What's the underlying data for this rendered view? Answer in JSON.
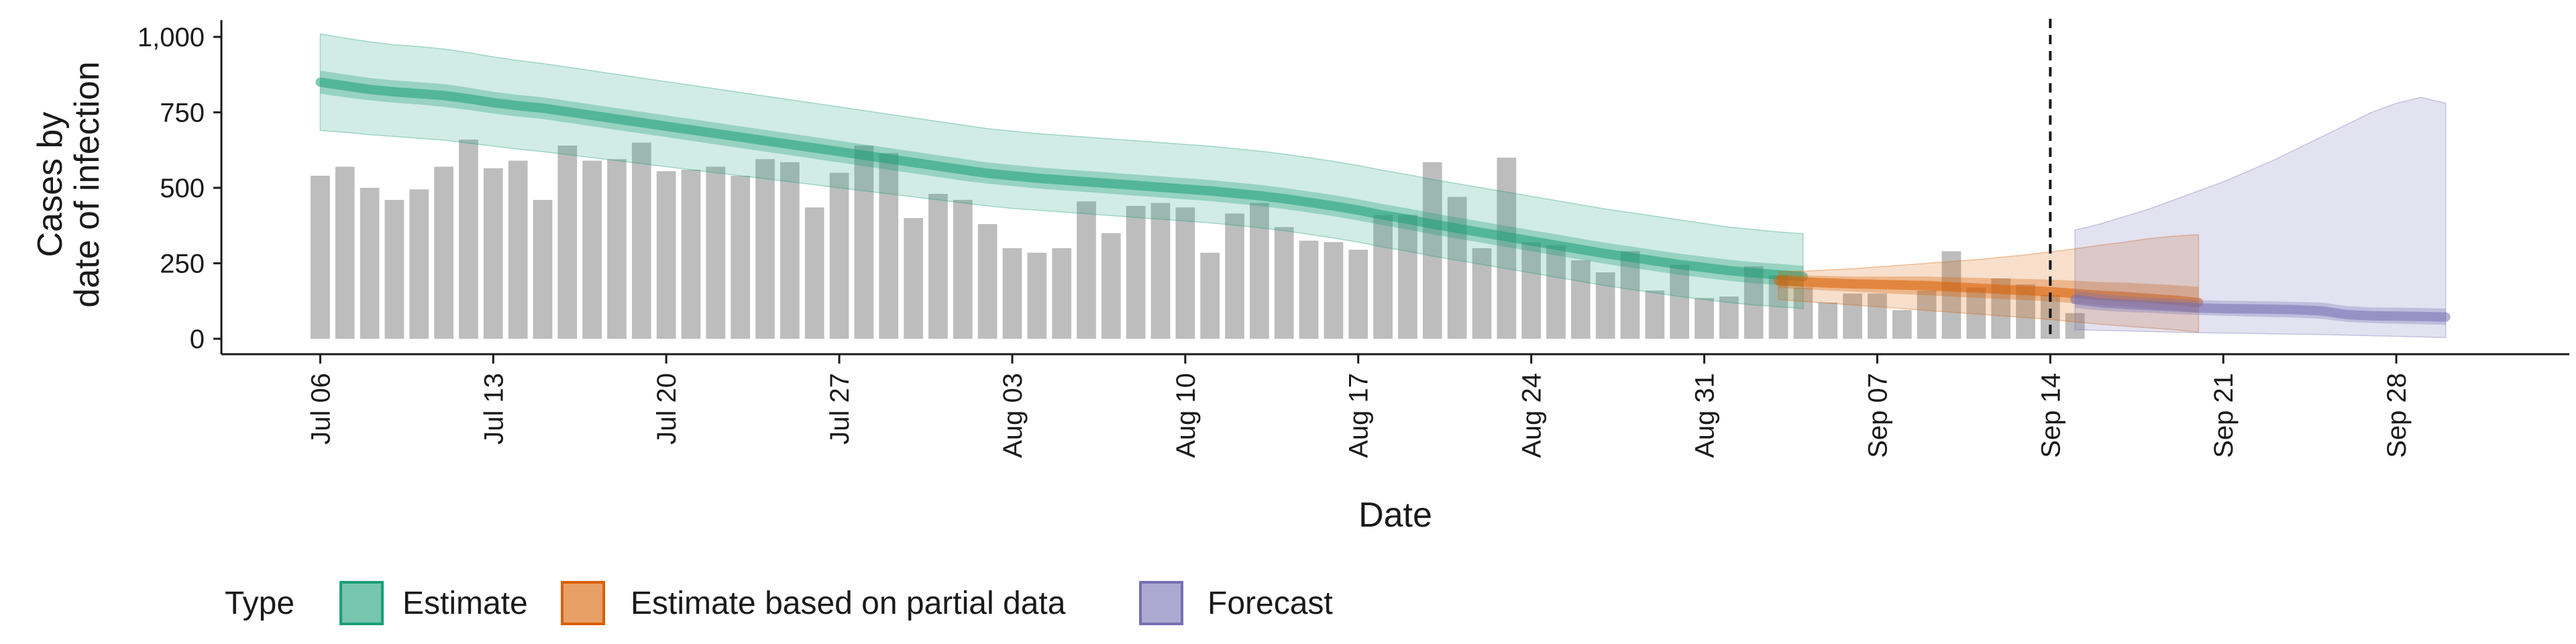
{
  "chart_data": {
    "type": "bar",
    "title": "",
    "xlabel": "Date",
    "ylabel_lines": [
      "Cases by",
      "date of infection"
    ],
    "ylim": [
      0,
      1050
    ],
    "y_ticks": [
      {
        "value": 0,
        "label": "0"
      },
      {
        "value": 250,
        "label": "250"
      },
      {
        "value": 500,
        "label": "500"
      },
      {
        "value": 750,
        "label": "750"
      },
      {
        "value": 1000,
        "label": "1,000"
      }
    ],
    "x_range": [
      "2020-07-02",
      "2020-10-05"
    ],
    "x_ticks": [
      {
        "date": "2020-07-06",
        "label": "Jul 06"
      },
      {
        "date": "2020-07-13",
        "label": "Jul 13"
      },
      {
        "date": "2020-07-20",
        "label": "Jul 20"
      },
      {
        "date": "2020-07-27",
        "label": "Jul 27"
      },
      {
        "date": "2020-08-03",
        "label": "Aug 03"
      },
      {
        "date": "2020-08-10",
        "label": "Aug 10"
      },
      {
        "date": "2020-08-17",
        "label": "Aug 17"
      },
      {
        "date": "2020-08-24",
        "label": "Aug 24"
      },
      {
        "date": "2020-08-31",
        "label": "Aug 31"
      },
      {
        "date": "2020-09-07",
        "label": "Sep 07"
      },
      {
        "date": "2020-09-14",
        "label": "Sep 14"
      },
      {
        "date": "2020-09-21",
        "label": "Sep 21"
      },
      {
        "date": "2020-09-28",
        "label": "Sep 28"
      }
    ],
    "reference_line_date": "2020-09-14",
    "reported_cases": {
      "start_date": "2020-07-06",
      "color": "#bdbdbd",
      "values": [
        540,
        570,
        500,
        460,
        495,
        570,
        660,
        565,
        590,
        460,
        640,
        590,
        595,
        650,
        555,
        560,
        570,
        540,
        595,
        585,
        435,
        550,
        640,
        615,
        400,
        480,
        460,
        380,
        300,
        285,
        300,
        455,
        350,
        440,
        450,
        435,
        285,
        415,
        450,
        370,
        325,
        320,
        295,
        410,
        410,
        585,
        470,
        300,
        600,
        320,
        310,
        260,
        220,
        290,
        160,
        245,
        135,
        140,
        240,
        210,
        170,
        120,
        150,
        150,
        95,
        160,
        290,
        170,
        200,
        180,
        145,
        85
      ]
    },
    "series": [
      {
        "name": "Estimate",
        "color": "#1b9e77",
        "start_date": "2020-07-06",
        "median": [
          850,
          838,
          826,
          818,
          812,
          806,
          795,
          782,
          772,
          764,
          752,
          740,
          728,
          716,
          704,
          692,
          680,
          668,
          656,
          644,
          632,
          620,
          608,
          596,
          584,
          572,
          560,
          548,
          540,
          532,
          526,
          520,
          514,
          508,
          502,
          496,
          490,
          482,
          474,
          464,
          452,
          440,
          426,
          410,
          396,
          380,
          366,
          352,
          338,
          324,
          310,
          296,
          282,
          270,
          258,
          246,
          236,
          226,
          218,
          212,
          206
        ],
        "inner": {
          "lower": [
            812,
            800,
            790,
            782,
            776,
            768,
            758,
            746,
            736,
            728,
            716,
            704,
            692,
            680,
            668,
            656,
            644,
            632,
            620,
            608,
            596,
            584,
            572,
            560,
            548,
            536,
            524,
            514,
            506,
            498,
            492,
            486,
            480,
            474,
            468,
            462,
            456,
            448,
            440,
            430,
            418,
            406,
            392,
            376,
            362,
            346,
            332,
            318,
            304,
            290,
            276,
            262,
            248,
            236,
            224,
            212,
            202,
            192,
            184,
            178,
            172
          ],
          "upper": [
            888,
            876,
            864,
            856,
            850,
            844,
            832,
            818,
            808,
            800,
            788,
            776,
            764,
            752,
            740,
            728,
            716,
            704,
            692,
            680,
            668,
            656,
            644,
            632,
            620,
            608,
            596,
            584,
            576,
            568,
            562,
            556,
            550,
            544,
            538,
            532,
            526,
            518,
            510,
            500,
            488,
            476,
            462,
            446,
            432,
            416,
            402,
            388,
            374,
            360,
            346,
            332,
            318,
            306,
            294,
            282,
            272,
            262,
            254,
            248,
            242
          ]
        },
        "outer": {
          "lower": [
            690,
            684,
            676,
            670,
            664,
            658,
            648,
            638,
            628,
            620,
            610,
            600,
            590,
            580,
            570,
            560,
            550,
            540,
            530,
            520,
            510,
            500,
            490,
            480,
            470,
            460,
            450,
            440,
            432,
            426,
            420,
            414,
            408,
            402,
            396,
            390,
            384,
            376,
            368,
            358,
            346,
            334,
            320,
            304,
            290,
            274,
            260,
            246,
            232,
            218,
            204,
            190,
            176,
            164,
            152,
            140,
            130,
            120,
            112,
            106,
            100
          ],
          "upper": [
            1010,
            996,
            984,
            974,
            968,
            960,
            948,
            934,
            922,
            912,
            900,
            888,
            876,
            864,
            852,
            840,
            828,
            816,
            804,
            792,
            780,
            768,
            756,
            744,
            732,
            720,
            708,
            696,
            688,
            680,
            674,
            668,
            662,
            656,
            650,
            644,
            638,
            630,
            622,
            612,
            600,
            588,
            574,
            558,
            544,
            528,
            514,
            500,
            486,
            472,
            458,
            444,
            430,
            418,
            406,
            394,
            382,
            370,
            362,
            354,
            348
          ]
        }
      },
      {
        "name": "Estimate based on partial data",
        "color": "#d95f02",
        "start_date": "2020-09-03",
        "median": [
          192,
          188,
          185,
          182,
          180,
          178,
          176,
          172,
          168,
          164,
          160,
          156,
          150,
          144,
          140,
          134,
          128,
          120
        ],
        "inner": {
          "lower": [
            168,
            164,
            160,
            156,
            152,
            148,
            144,
            140,
            136,
            132,
            128,
            124,
            118,
            112,
            106,
            100,
            94,
            86
          ],
          "upper": [
            214,
            210,
            208,
            206,
            206,
            206,
            206,
            204,
            202,
            200,
            198,
            196,
            192,
            188,
            186,
            182,
            178,
            172
          ]
        },
        "outer": {
          "lower": [
            130,
            124,
            118,
            112,
            106,
            100,
            94,
            88,
            82,
            76,
            70,
            64,
            56,
            48,
            42,
            36,
            30,
            22
          ],
          "upper": [
            222,
            224,
            228,
            232,
            238,
            244,
            250,
            256,
            262,
            270,
            278,
            288,
            298,
            310,
            320,
            332,
            340,
            345
          ]
        }
      },
      {
        "name": "Forecast",
        "color": "#7570b3",
        "start_date": "2020-09-15",
        "median": [
          130,
          120,
          114,
          110,
          106,
          102,
          100,
          99,
          98,
          96,
          92,
          80,
          76,
          75,
          74,
          72
        ],
        "inner": {
          "lower": [
            102,
            94,
            89,
            86,
            82,
            79,
            76,
            74,
            72,
            70,
            66,
            56,
            52,
            50,
            48,
            46
          ],
          "upper": [
            158,
            148,
            141,
            136,
            132,
            128,
            126,
            125,
            124,
            122,
            120,
            108,
            104,
            103,
            102,
            100
          ]
        },
        "outer": {
          "lower": [
            30,
            28,
            26,
            24,
            22,
            20,
            19,
            18,
            16,
            15,
            14,
            12,
            10,
            8,
            6,
            4
          ],
          "upper": [
            360,
            380,
            405,
            430,
            460,
            490,
            520,
            555,
            590,
            630,
            670,
            710,
            750,
            780,
            800,
            780
          ]
        }
      }
    ],
    "legend": {
      "title": "Type",
      "position": "bottom",
      "items": [
        "Estimate",
        "Estimate based on partial data",
        "Forecast"
      ]
    },
    "grid": false
  }
}
